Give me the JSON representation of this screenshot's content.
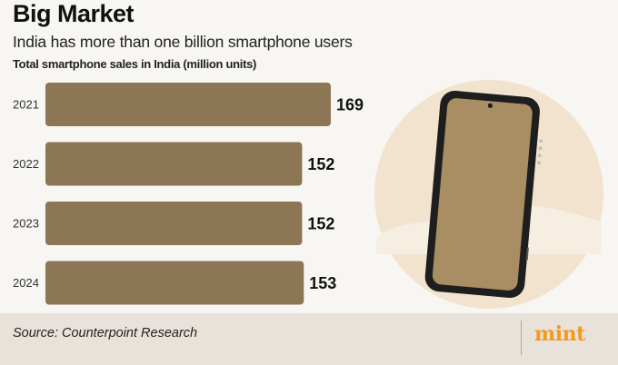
{
  "header": {
    "title": "Big Market",
    "subtitle": "India has more than one billion smartphone users"
  },
  "chart_data": {
    "type": "bar",
    "orientation": "horizontal",
    "title": "Total smartphone sales in India (million units)",
    "categories": [
      "2021",
      "2022",
      "2023",
      "2024"
    ],
    "values": [
      169,
      152,
      152,
      153
    ],
    "data_labels": [
      "169",
      "152",
      "152",
      "153"
    ],
    "xlim": [
      0,
      169
    ],
    "bar_color": "#8c7656",
    "grid": false
  },
  "illustration": {
    "name": "smartphone-illustration",
    "circle_color": "#f0e0c8",
    "phone_screen_color": "#a98e64"
  },
  "footer": {
    "source": "Source: Counterpoint Research",
    "brand": "mint",
    "brand_color": "#f29a1e"
  }
}
